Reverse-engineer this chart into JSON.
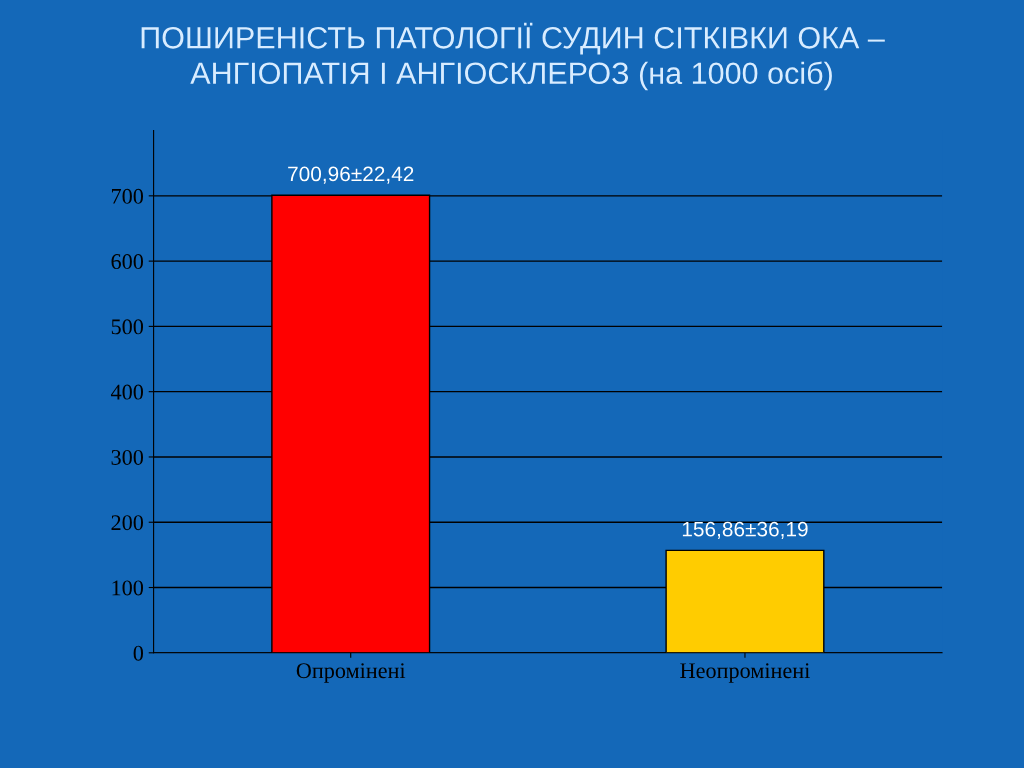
{
  "chart_data": {
    "type": "bar",
    "title": "ПОШИРЕНІСТЬ ПАТОЛОГІЇ СУДИН СІТКІВКИ ОКА –\nАНГІОПАТІЯ І АНГІОСКЛЕРОЗ (на 1000 осіб)",
    "categories": [
      "Опромінені",
      "Неопромінені"
    ],
    "values": [
      700.96,
      156.86
    ],
    "colors": [
      "#ff0000",
      "#ffcc00"
    ],
    "value_labels": [
      "700,96±22,42",
      "156,86±36,19"
    ],
    "ylim": [
      0,
      800
    ],
    "yticks": [
      0,
      100,
      200,
      300,
      400,
      500,
      600,
      700
    ],
    "grid": "y"
  }
}
